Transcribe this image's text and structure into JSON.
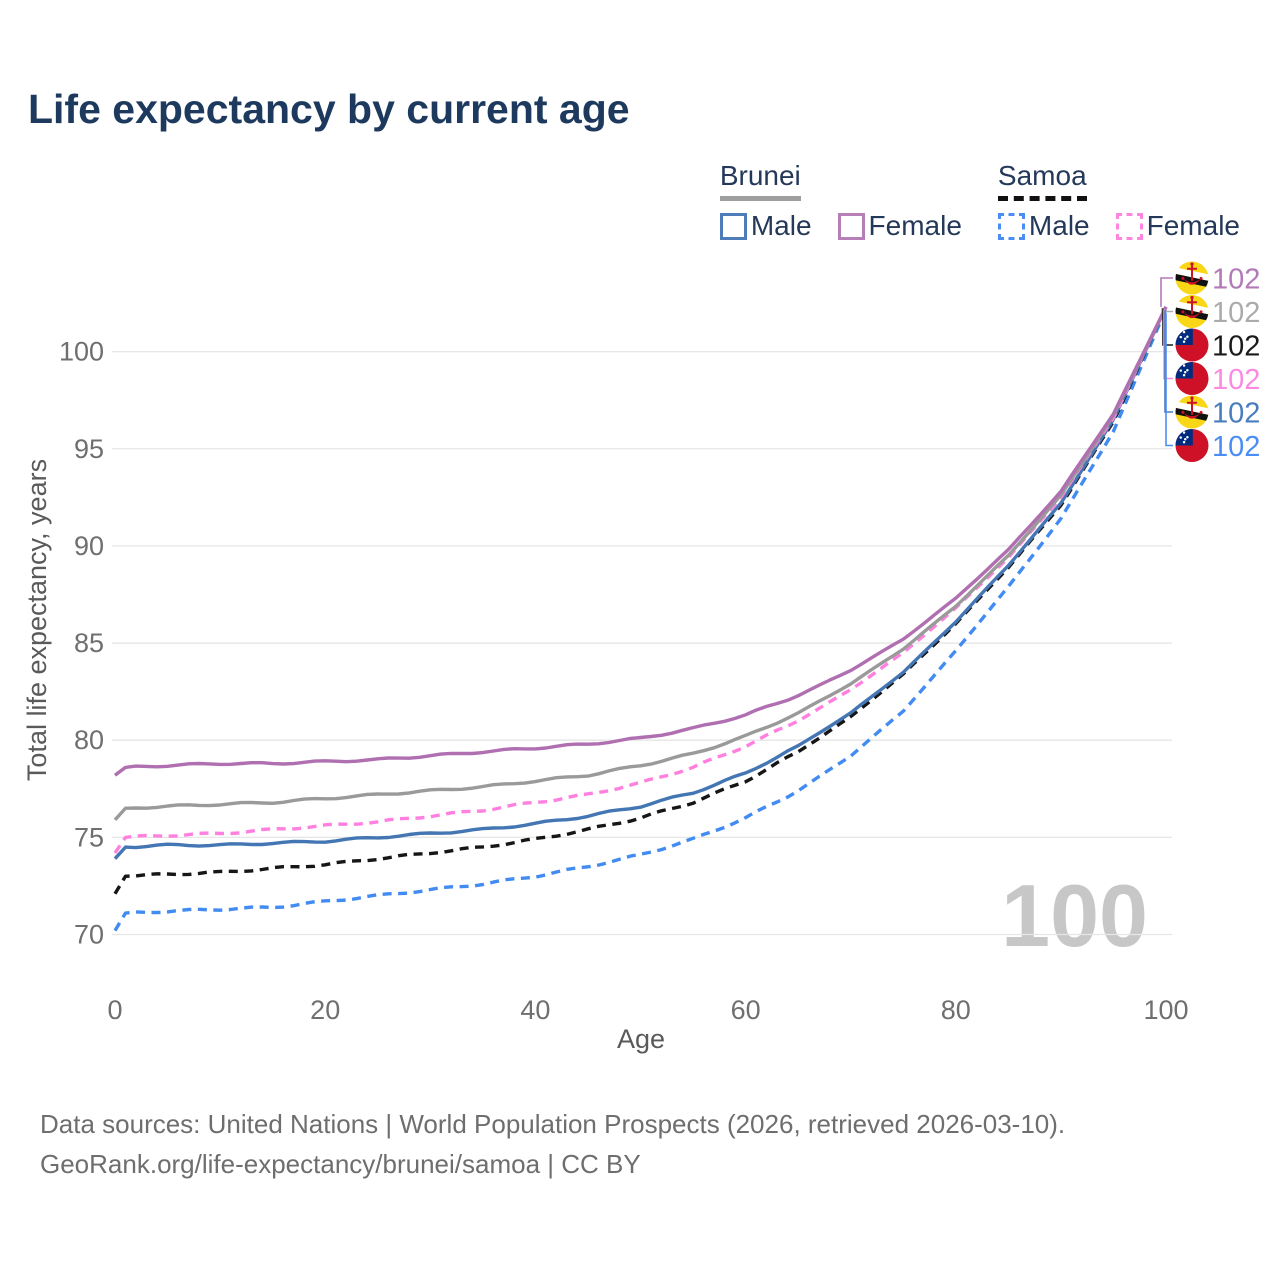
{
  "title": "Life expectancy by current age",
  "legend": {
    "groups": [
      {
        "name": "Brunei",
        "line_style": "solid",
        "items": [
          {
            "label": "Male",
            "color": "#4e7cb8"
          },
          {
            "label": "Female",
            "color": "#b77fb7"
          }
        ]
      },
      {
        "name": "Samoa",
        "line_style": "dashed",
        "items": [
          {
            "label": "Male",
            "color": "#4a8ef5"
          },
          {
            "label": "Female",
            "color": "#ff85e0"
          }
        ]
      }
    ]
  },
  "chart_data": {
    "type": "line",
    "title": "Life expectancy by current age",
    "xlabel": "Age",
    "ylabel": "Total life expectancy, years",
    "xlim": [
      0,
      100
    ],
    "ylim": [
      69.5,
      102.5
    ],
    "x_ticks": [
      0,
      20,
      40,
      60,
      80,
      100
    ],
    "y_ticks": [
      70,
      75,
      80,
      85,
      90,
      95,
      100
    ],
    "grid": "horizontal",
    "legend_position": "top-right",
    "watermark": "100",
    "x": [
      0,
      1,
      5,
      10,
      15,
      20,
      25,
      30,
      35,
      40,
      45,
      50,
      55,
      60,
      65,
      70,
      75,
      80,
      85,
      90,
      95,
      100
    ],
    "series": [
      {
        "name": "Brunei Female",
        "country": "brunei",
        "line": "solid",
        "color": "#b06fb0",
        "values": [
          78.2,
          78.6,
          78.7,
          78.8,
          78.8,
          78.9,
          79.0,
          79.2,
          79.4,
          79.6,
          79.8,
          80.1,
          80.6,
          81.3,
          82.3,
          83.6,
          85.2,
          87.3,
          89.8,
          92.8,
          96.8,
          102.3
        ]
      },
      {
        "name": "Brunei",
        "country": "brunei",
        "line": "solid",
        "color": "#9a9a9a",
        "values": [
          75.9,
          76.5,
          76.6,
          76.7,
          76.8,
          77.0,
          77.2,
          77.4,
          77.6,
          77.9,
          78.2,
          78.7,
          79.3,
          80.2,
          81.4,
          82.9,
          84.7,
          86.9,
          89.5,
          92.6,
          96.7,
          102.3
        ]
      },
      {
        "name": "Brunei Male",
        "country": "brunei",
        "line": "solid",
        "color": "#4476b4",
        "values": [
          73.9,
          74.5,
          74.6,
          74.6,
          74.7,
          74.8,
          75.0,
          75.2,
          75.4,
          75.7,
          76.1,
          76.6,
          77.3,
          78.3,
          79.7,
          81.4,
          83.5,
          86.1,
          89.0,
          92.2,
          96.5,
          102.3
        ]
      },
      {
        "name": "Samoa",
        "country": "samoa",
        "line": "dashed",
        "color": "#161616",
        "values": [
          72.1,
          73.0,
          73.1,
          73.2,
          73.4,
          73.6,
          73.9,
          74.2,
          74.5,
          74.9,
          75.4,
          76.0,
          76.8,
          77.9,
          79.4,
          81.2,
          83.4,
          86.0,
          88.9,
          92.1,
          96.4,
          102.3
        ]
      },
      {
        "name": "Samoa Female",
        "country": "samoa",
        "line": "dashed",
        "color": "#ff80df",
        "values": [
          74.2,
          75.0,
          75.1,
          75.2,
          75.4,
          75.6,
          75.8,
          76.1,
          76.4,
          76.8,
          77.2,
          77.8,
          78.6,
          79.7,
          81.0,
          82.6,
          84.5,
          86.8,
          89.4,
          92.5,
          96.6,
          102.3
        ]
      },
      {
        "name": "Samoa Male",
        "country": "samoa",
        "line": "dashed",
        "color": "#418bf2",
        "values": [
          70.2,
          71.1,
          71.2,
          71.3,
          71.4,
          71.7,
          72.0,
          72.3,
          72.6,
          73.0,
          73.5,
          74.1,
          74.9,
          76.0,
          77.4,
          79.2,
          81.5,
          84.6,
          87.9,
          91.4,
          95.9,
          102.2
        ]
      }
    ],
    "end_labels": [
      {
        "series": "Brunei Female",
        "country": "brunei",
        "value": "102",
        "color": "#b37ab8"
      },
      {
        "series": "Brunei",
        "country": "brunei",
        "value": "102",
        "color": "#ababab"
      },
      {
        "series": "Samoa",
        "country": "samoa",
        "value": "102",
        "color": "#1b1b1b"
      },
      {
        "series": "Samoa Female",
        "country": "samoa",
        "value": "102",
        "color": "#fb8be0"
      },
      {
        "series": "Brunei Male",
        "country": "brunei",
        "value": "102",
        "color": "#4a7dbd"
      },
      {
        "series": "Samoa Male",
        "country": "samoa",
        "value": "102",
        "color": "#4a8ef5"
      }
    ]
  },
  "footer": {
    "line1": "Data sources: United Nations | World Population Prospects (2026, retrieved 2026-03-10).",
    "line2": "GeoRank.org/life-expectancy/brunei/samoa | CC BY"
  }
}
